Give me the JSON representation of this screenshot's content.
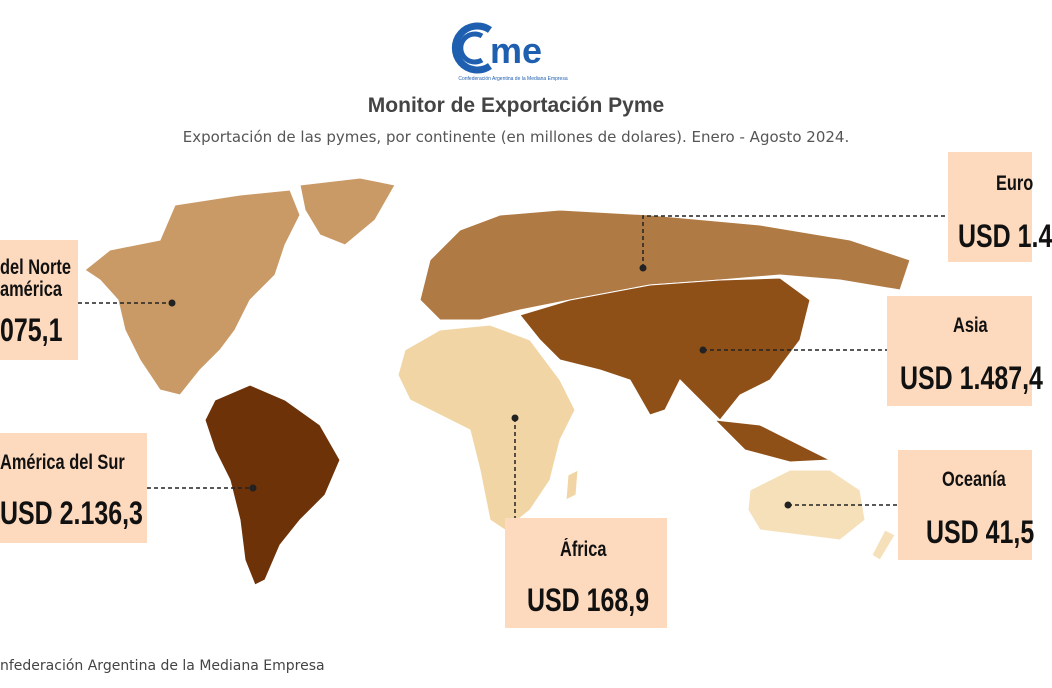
{
  "header": {
    "logo_text": "cme",
    "logo_subtitle": "Confederación Argentina de la Mediana Empresa",
    "title": "Monitor de Exportación Pyme",
    "subtitle": "Exportación de las pymes, por continente (en millones de dolares). Enero - Agosto 2024."
  },
  "regions": {
    "north_america": {
      "label_line1": "del Norte",
      "label_line2": "américa",
      "value": "075,1",
      "color": "#c99a66"
    },
    "europe": {
      "label": "Euro",
      "value": "USD 1.4",
      "color": "#b07a45"
    },
    "asia": {
      "label": "Asia",
      "value": "USD 1.487,4",
      "color": "#8f5018"
    },
    "south_america": {
      "label": "América del Sur",
      "value": "USD 2.136,3",
      "color": "#6e3208"
    },
    "africa": {
      "label": "África",
      "value": "USD 168,9",
      "color": "#f1d5a5"
    },
    "oceania": {
      "label": "Oceanía",
      "value": "USD 41,5",
      "color": "#f6e0ba"
    }
  },
  "colors": {
    "label_box": "#fdd9be",
    "logo_blue": "#1f5fb0"
  },
  "footer": "nfederación Argentina de la Mediana Empresa"
}
